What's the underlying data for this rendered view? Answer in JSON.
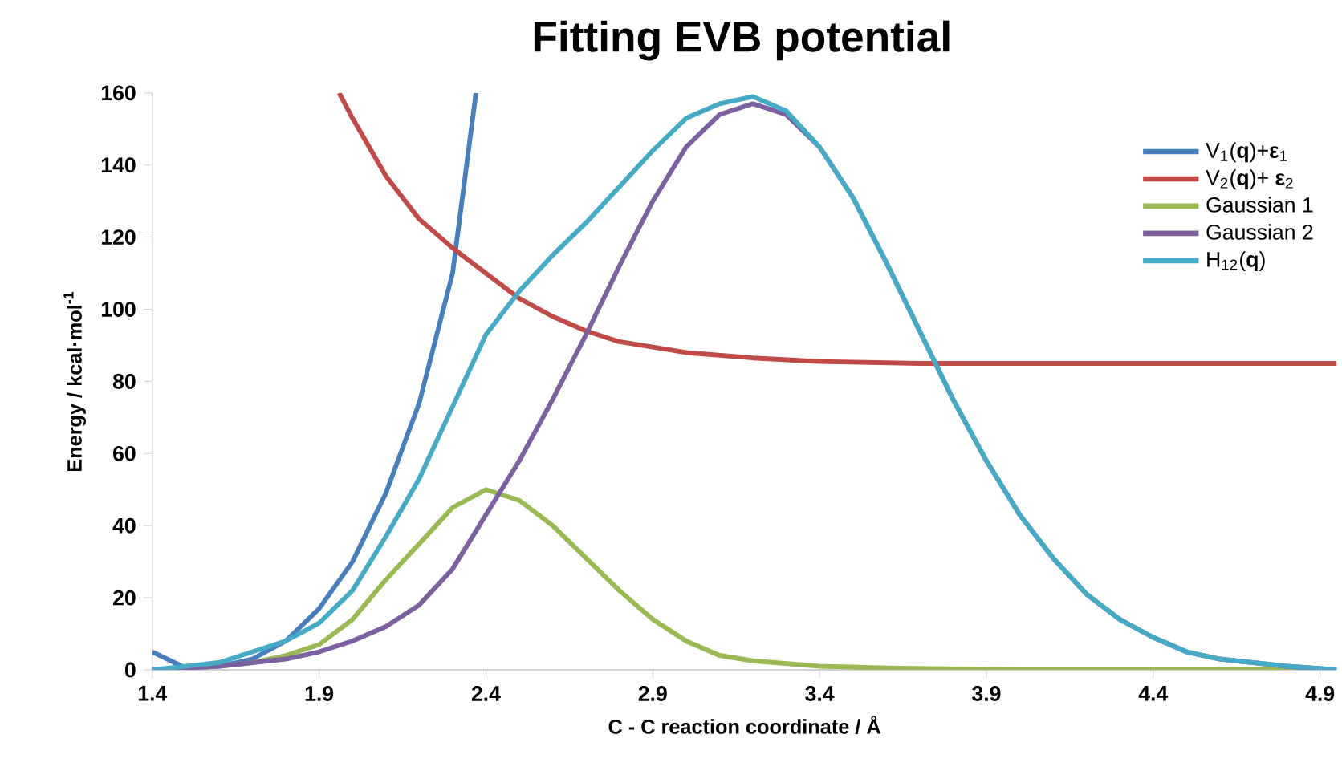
{
  "chart_data": {
    "type": "line",
    "title": "Fitting EVB potential",
    "xlabel": "C - C reaction coordinate / Å",
    "ylabel": "Energy / kcal·mol$^{-1}$",
    "xlim": [
      1.4,
      4.95
    ],
    "ylim": [
      0,
      160
    ],
    "xticks": [
      1.4,
      1.9,
      2.4,
      2.9,
      3.4,
      3.9,
      4.4,
      4.9
    ],
    "yticks": [
      0,
      20,
      40,
      60,
      80,
      100,
      120,
      140,
      160
    ],
    "grid": false,
    "legend": "top right",
    "marker": "none",
    "line_style": "solid",
    "series": [
      {
        "name": "V$_{1}$(**q**)+**ε**$_{1}$",
        "color": "#4a7ebb",
        "x": [
          1.4,
          1.5,
          1.6,
          1.7,
          1.8,
          1.9,
          2.0,
          2.1,
          2.2,
          2.3,
          2.37
        ],
        "values": [
          5,
          0.5,
          1,
          3,
          8,
          17,
          30,
          49,
          74,
          110,
          160
        ]
      },
      {
        "name": "V$_{2}$(**q**)+ **ε**$_{2}$",
        "color": "#be4b48",
        "x": [
          1.96,
          2.0,
          2.1,
          2.2,
          2.3,
          2.4,
          2.5,
          2.6,
          2.7,
          2.8,
          3.0,
          3.2,
          3.4,
          3.7,
          4.2,
          4.95
        ],
        "values": [
          160,
          153,
          137,
          125,
          117,
          110,
          103,
          98,
          94,
          91,
          88,
          86.5,
          85.5,
          85,
          85,
          85
        ]
      },
      {
        "name": "Gaussian 1",
        "color": "#98b954",
        "x": [
          1.4,
          1.6,
          1.7,
          1.8,
          1.9,
          2.0,
          2.1,
          2.2,
          2.3,
          2.4,
          2.5,
          2.6,
          2.7,
          2.8,
          2.9,
          3.0,
          3.1,
          3.2,
          3.4,
          3.6,
          4.0,
          4.95
        ],
        "values": [
          0,
          1,
          2,
          4,
          7,
          14,
          25,
          35,
          45,
          50,
          47,
          40,
          31,
          22,
          14,
          8,
          4,
          2.5,
          1,
          0.5,
          0,
          0
        ]
      },
      {
        "name": "Gaussian 2",
        "color": "#7d60a0",
        "x": [
          1.4,
          1.6,
          1.8,
          1.9,
          2.0,
          2.1,
          2.2,
          2.3,
          2.4,
          2.5,
          2.6,
          2.7,
          2.8,
          2.9,
          3.0,
          3.1,
          3.2,
          3.3,
          3.4,
          3.5,
          3.6,
          3.7,
          3.8,
          3.9,
          4.0,
          4.1,
          4.2,
          4.3,
          4.4,
          4.5,
          4.6,
          4.8,
          4.95
        ],
        "values": [
          0,
          1,
          3,
          5,
          8,
          12,
          18,
          28,
          43,
          58,
          75,
          93,
          112,
          130,
          145,
          154,
          157,
          154,
          145,
          131,
          113,
          94,
          75,
          58,
          43,
          31,
          21,
          14,
          9,
          5,
          3,
          1,
          0
        ]
      },
      {
        "name": "H$_{12}$(**q**)",
        "color": "#46aac5",
        "x": [
          1.4,
          1.6,
          1.8,
          1.9,
          2.0,
          2.1,
          2.2,
          2.3,
          2.4,
          2.5,
          2.6,
          2.7,
          2.8,
          2.9,
          3.0,
          3.1,
          3.2,
          3.3,
          3.4,
          3.5,
          3.6,
          3.7,
          3.8,
          3.9,
          4.0,
          4.1,
          4.2,
          4.3,
          4.4,
          4.5,
          4.6,
          4.8,
          4.95
        ],
        "values": [
          0,
          2,
          8,
          13,
          22,
          37,
          53,
          73,
          93,
          105,
          115,
          124,
          134,
          144,
          153,
          157,
          159,
          155,
          145,
          131,
          113,
          94,
          75,
          58,
          43,
          31,
          21,
          14,
          9,
          5,
          3,
          1,
          0
        ]
      }
    ]
  }
}
